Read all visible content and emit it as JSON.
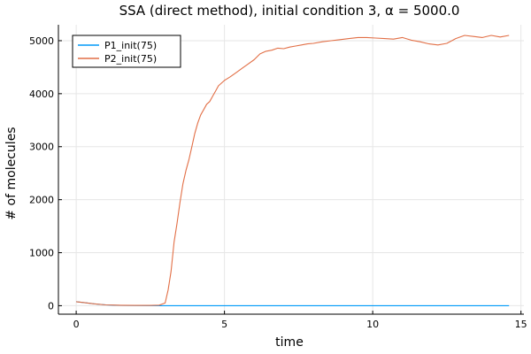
{
  "chart_data": {
    "type": "line",
    "title": "SSA (direct method), initial condition 3, α = 5000.0",
    "xlabel": "time",
    "ylabel": "# of molecules",
    "xlim": [
      -0.6,
      15.1
    ],
    "ylim": [
      -160,
      5300
    ],
    "xticks": [
      0,
      5,
      10,
      15
    ],
    "yticks": [
      0,
      1000,
      2000,
      3000,
      4000,
      5000
    ],
    "xtick_labels": [
      "0",
      "5",
      "10",
      "15"
    ],
    "ytick_labels": [
      "0",
      "1000",
      "2000",
      "3000",
      "4000",
      "5000"
    ],
    "grid": true,
    "legend_position": "top-left",
    "series": [
      {
        "name": "P1_init(75)",
        "color": "#009af9",
        "x": [
          0,
          0.3,
          0.6,
          1.0,
          1.5,
          2.0,
          2.5,
          2.9,
          3.2,
          3.6,
          4.0,
          5.0,
          6.0,
          8.0,
          10.0,
          12.0,
          14.0,
          14.6
        ],
        "y": [
          75,
          55,
          35,
          15,
          6,
          3,
          2,
          1,
          0,
          0,
          0,
          0,
          0,
          0,
          0,
          0,
          0,
          0
        ]
      },
      {
        "name": "P2_init(75)",
        "color": "#e26f46",
        "x": [
          0,
          0.3,
          0.6,
          1.0,
          1.5,
          2.0,
          2.5,
          2.8,
          3.0,
          3.1,
          3.2,
          3.3,
          3.4,
          3.5,
          3.6,
          3.7,
          3.8,
          3.9,
          4.0,
          4.1,
          4.2,
          4.3,
          4.4,
          4.5,
          4.6,
          4.7,
          4.8,
          4.9,
          5.0,
          5.2,
          5.4,
          5.6,
          5.8,
          6.0,
          6.2,
          6.4,
          6.6,
          6.8,
          7.0,
          7.2,
          7.4,
          7.6,
          7.8,
          8.0,
          8.3,
          8.6,
          8.9,
          9.2,
          9.5,
          9.8,
          10.1,
          10.4,
          10.7,
          11.0,
          11.3,
          11.6,
          11.9,
          12.2,
          12.5,
          12.8,
          13.1,
          13.4,
          13.7,
          14.0,
          14.3,
          14.6
        ],
        "y": [
          75,
          55,
          35,
          15,
          8,
          6,
          5,
          10,
          50,
          300,
          650,
          1200,
          1550,
          1950,
          2300,
          2550,
          2750,
          3000,
          3250,
          3450,
          3600,
          3700,
          3800,
          3850,
          3950,
          4050,
          4150,
          4200,
          4250,
          4320,
          4400,
          4480,
          4560,
          4640,
          4750,
          4800,
          4820,
          4860,
          4850,
          4880,
          4900,
          4920,
          4940,
          4950,
          4980,
          5000,
          5020,
          5040,
          5060,
          5060,
          5050,
          5040,
          5030,
          5060,
          5010,
          4980,
          4940,
          4920,
          4950,
          5040,
          5100,
          5080,
          5060,
          5100,
          5070,
          5100
        ]
      }
    ]
  }
}
